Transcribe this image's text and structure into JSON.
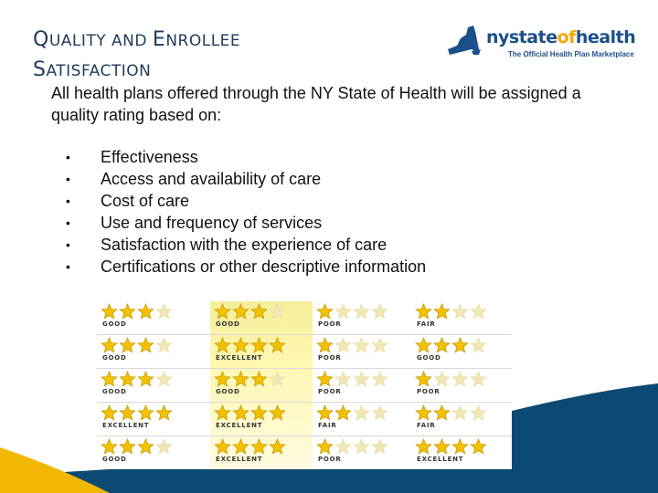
{
  "title": {
    "line1_first": "Q",
    "line1_rest": "UALITY AND ",
    "line1_first2": "E",
    "line1_rest2": "NROLLEE",
    "line2_first": "S",
    "line2_rest": "ATISFACTION"
  },
  "logo": {
    "word_a": "nystate",
    "word_b": "of",
    "word_c": "health",
    "tagline": "The Official Health Plan Marketplace"
  },
  "intro": "All health plans offered through the NY State of Health will be assigned a quality rating based on:",
  "bullets": [
    "Effectiveness",
    "Access and availability of care",
    "Cost of care",
    "Use and frequency of services",
    "Satisfaction with the experience of care",
    "Certifications or other descriptive information"
  ],
  "bullet_glyph": "•",
  "ratings": [
    [
      {
        "stars": 3,
        "label": "GOOD"
      },
      {
        "stars": 3,
        "label": "GOOD"
      },
      {
        "stars": 1,
        "label": "POOR"
      },
      {
        "stars": 2,
        "label": "FAIR"
      }
    ],
    [
      {
        "stars": 3,
        "label": "GOOD"
      },
      {
        "stars": 4,
        "label": "EXCELLENT"
      },
      {
        "stars": 1,
        "label": "POOR"
      },
      {
        "stars": 3,
        "label": "GOOD"
      }
    ],
    [
      {
        "stars": 3,
        "label": "GOOD"
      },
      {
        "stars": 3,
        "label": "GOOD"
      },
      {
        "stars": 1,
        "label": "POOR"
      },
      {
        "stars": 1,
        "label": "POOR"
      }
    ],
    [
      {
        "stars": 4,
        "label": "EXCELLENT"
      },
      {
        "stars": 4,
        "label": "EXCELLENT"
      },
      {
        "stars": 2,
        "label": "FAIR"
      },
      {
        "stars": 2,
        "label": "FAIR"
      }
    ],
    [
      {
        "stars": 3,
        "label": "GOOD"
      },
      {
        "stars": 4,
        "label": "EXCELLENT"
      },
      {
        "stars": 1,
        "label": "POOR"
      },
      {
        "stars": 4,
        "label": "EXCELLENT"
      }
    ]
  ],
  "max_stars": 4,
  "colors": {
    "star": "#f2c200",
    "star_outline": "#c99a00",
    "title": "#1f3a5a",
    "brand_blue": "#1b4f8a",
    "brand_orange": "#f2a900",
    "wave_blue": "#0d4a73",
    "wave_yellow": "#f2b705"
  }
}
